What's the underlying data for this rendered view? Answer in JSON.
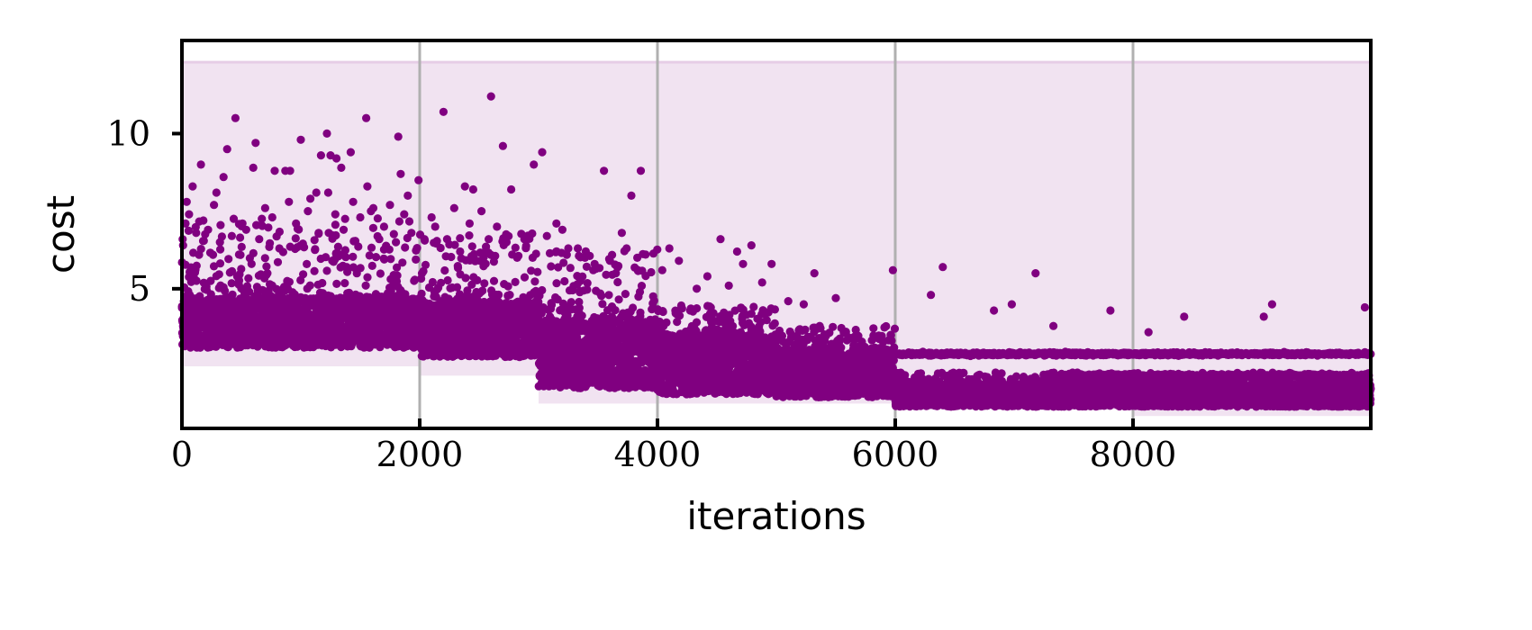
{
  "chart_data": {
    "type": "scatter",
    "title": "",
    "xlabel": "iterations",
    "ylabel": "cost",
    "xlim": [
      0,
      10000
    ],
    "ylim": [
      0.5,
      13
    ],
    "xticks": [
      0,
      2000,
      4000,
      6000,
      8000
    ],
    "xtick_labels": [
      "0",
      "2000",
      "4000",
      "6000",
      "8000"
    ],
    "yticks": [
      5,
      10
    ],
    "ytick_labels": [
      "5",
      "10"
    ],
    "vertical_gridlines_at": [
      2000,
      4000,
      6000,
      8000
    ],
    "grid": "vertical lines at x-ticks",
    "legend": "none",
    "colors": {
      "points": "#800080",
      "band_fill": "#f1e3f1",
      "gridline": "#b0b0b0",
      "axes": "#000000"
    },
    "shaded_band": {
      "x": [
        0,
        10000
      ],
      "upper": 12.3,
      "lower_by_segment": [
        {
          "x_start": 0,
          "x_end": 2000,
          "lower": 2.5
        },
        {
          "x_start": 2000,
          "x_end": 3000,
          "lower": 2.2
        },
        {
          "x_start": 3000,
          "x_end": 4000,
          "lower": 1.3
        },
        {
          "x_start": 4000,
          "x_end": 6000,
          "lower": 1.3
        },
        {
          "x_start": 6000,
          "x_end": 8000,
          "lower": 1.1
        },
        {
          "x_start": 8000,
          "x_end": 10000,
          "lower": 0.9
        }
      ]
    },
    "series": [
      {
        "points": [
          [
            40,
            7.8
          ],
          [
            90,
            8.3
          ],
          [
            160,
            9.0
          ],
          [
            270,
            7.7
          ],
          [
            290,
            8.1
          ],
          [
            350,
            8.6
          ],
          [
            380,
            9.5
          ],
          [
            450,
            10.5
          ],
          [
            620,
            9.7
          ],
          [
            600,
            8.9
          ],
          [
            780,
            8.8
          ],
          [
            870,
            8.8
          ],
          [
            910,
            8.8
          ],
          [
            1000,
            9.8
          ],
          [
            1060,
            7.5
          ],
          [
            1130,
            8.1
          ],
          [
            1170,
            9.3
          ],
          [
            1220,
            10.0
          ],
          [
            1250,
            9.3
          ],
          [
            1300,
            9.2
          ],
          [
            1340,
            8.9
          ],
          [
            1420,
            9.4
          ],
          [
            1550,
            10.5
          ],
          [
            1590,
            7.5
          ],
          [
            1700,
            7.0
          ],
          [
            1820,
            9.9
          ],
          [
            1840,
            8.7
          ],
          [
            1900,
            8.0
          ],
          [
            1990,
            8.5
          ],
          [
            2100,
            7.3
          ],
          [
            2200,
            10.7
          ],
          [
            2380,
            8.3
          ],
          [
            2450,
            8.2
          ],
          [
            2600,
            11.2
          ],
          [
            2700,
            9.6
          ],
          [
            2770,
            8.2
          ],
          [
            2960,
            9.0
          ],
          [
            3030,
            9.4
          ],
          [
            3200,
            6.9
          ],
          [
            3330,
            6.3
          ],
          [
            3550,
            8.8
          ],
          [
            3700,
            6.8
          ],
          [
            3780,
            8.0
          ],
          [
            3860,
            8.8
          ],
          [
            3900,
            6.1
          ],
          [
            4100,
            6.3
          ],
          [
            4530,
            6.6
          ],
          [
            4670,
            6.2
          ],
          [
            4790,
            6.4
          ],
          [
            4720,
            5.8
          ],
          [
            4960,
            5.8
          ],
          [
            5320,
            5.5
          ],
          [
            5500,
            4.7
          ],
          [
            5980,
            5.6
          ],
          [
            6300,
            4.8
          ],
          [
            6400,
            5.7
          ],
          [
            6830,
            4.3
          ],
          [
            6980,
            4.5
          ],
          [
            7180,
            5.5
          ],
          [
            7330,
            3.8
          ],
          [
            7810,
            4.3
          ],
          [
            8130,
            3.6
          ],
          [
            8430,
            4.1
          ],
          [
            9100,
            4.1
          ],
          [
            9170,
            4.5
          ],
          [
            9950,
            4.4
          ],
          [
            10,
            6.4
          ],
          [
            30,
            7.1
          ],
          [
            60,
            7.4
          ],
          [
            120,
            6.8
          ],
          [
            180,
            7.2
          ],
          [
            220,
            6.9
          ],
          [
            320,
            6.5
          ],
          [
            420,
            6.7
          ],
          [
            480,
            6.1
          ],
          [
            540,
            6.9
          ],
          [
            650,
            6.6
          ],
          [
            700,
            7.6
          ],
          [
            760,
            7.3
          ],
          [
            820,
            6.3
          ],
          [
            900,
            7.8
          ],
          [
            960,
            7.1
          ],
          [
            1080,
            7.9
          ],
          [
            1150,
            6.8
          ],
          [
            1230,
            8.1
          ],
          [
            1290,
            7.4
          ],
          [
            1360,
            6.9
          ],
          [
            1440,
            7.8
          ],
          [
            1500,
            7.3
          ],
          [
            1560,
            8.3
          ],
          [
            1610,
            7.6
          ],
          [
            1660,
            6.6
          ],
          [
            1750,
            7.7
          ],
          [
            1800,
            6.5
          ],
          [
            1870,
            7.4
          ],
          [
            1930,
            6.8
          ],
          [
            2040,
            6.6
          ],
          [
            2130,
            7.0
          ],
          [
            2230,
            6.6
          ],
          [
            2290,
            7.6
          ],
          [
            2340,
            6.2
          ],
          [
            2420,
            7.1
          ],
          [
            2520,
            7.5
          ],
          [
            2580,
            6.6
          ],
          [
            2650,
            7.0
          ],
          [
            2730,
            6.5
          ],
          [
            2820,
            6.0
          ],
          [
            2880,
            6.6
          ],
          [
            2950,
            6.0
          ],
          [
            3070,
            6.7
          ],
          [
            3150,
            7.1
          ],
          [
            3250,
            6.3
          ],
          [
            3390,
            6.0
          ],
          [
            3460,
            5.6
          ],
          [
            3600,
            5.9
          ],
          [
            3650,
            5.5
          ],
          [
            3740,
            6.3
          ],
          [
            3830,
            6.0
          ],
          [
            4040,
            5.6
          ],
          [
            4180,
            5.9
          ],
          [
            4330,
            5.0
          ],
          [
            4420,
            5.4
          ],
          [
            4600,
            5.1
          ],
          [
            4880,
            5.2
          ],
          [
            5100,
            4.6
          ],
          [
            5230,
            4.5
          ]
        ]
      }
    ],
    "density_structure_note_free": true,
    "bands": [
      {
        "x0": 0,
        "x1": 2000,
        "dense_lo": 3.1,
        "dense_hi": 4.7,
        "sparse_lo": 4.7,
        "sparse_hi": 7.3
      },
      {
        "x0": 2000,
        "x1": 3000,
        "dense_lo": 2.8,
        "dense_hi": 4.6,
        "sparse_lo": 4.6,
        "sparse_hi": 6.8
      },
      {
        "x0": 3000,
        "x1": 4000,
        "dense_lo": 1.8,
        "dense_hi": 4.0,
        "sparse_lo": 4.0,
        "sparse_hi": 6.3
      },
      {
        "x0": 4000,
        "x1": 5000,
        "dense_lo": 1.6,
        "dense_hi": 3.5,
        "sparse_lo": 3.5,
        "sparse_hi": 4.5
      },
      {
        "x0": 5000,
        "x1": 6000,
        "dense_lo": 1.5,
        "dense_hi": 3.0,
        "sparse_lo": 3.0,
        "sparse_hi": 3.8
      },
      {
        "x0": 6000,
        "x1": 10000,
        "dense_lo": 1.2,
        "dense_hi": 1.9,
        "sparse_lo": 1.9,
        "sparse_hi": 2.3
      }
    ],
    "horizontal_tracks": [
      {
        "x0": 6000,
        "x1": 10000,
        "y": 2.9
      },
      {
        "x0": 7400,
        "x1": 10000,
        "y": 2.2
      }
    ]
  }
}
